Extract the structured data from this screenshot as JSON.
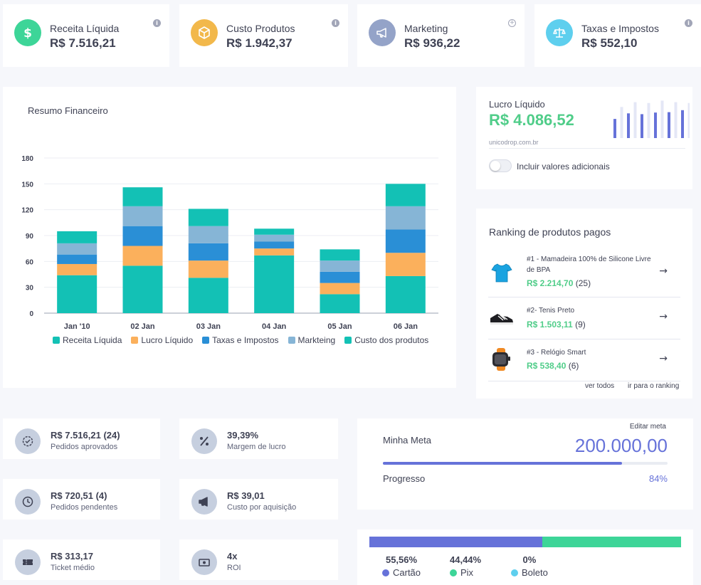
{
  "stats": [
    {
      "label": "Receita Líquida",
      "value": "R$ 7.516,21",
      "icon": "dollar-icon",
      "color": "#3dd598"
    },
    {
      "label": "Custo Produtos",
      "value": "R$ 1.942,37",
      "icon": "box-icon",
      "color": "#f2b84b"
    },
    {
      "label": "Marketing",
      "value": "R$ 936,22",
      "icon": "megaphone-icon",
      "color": "#94a3c8"
    },
    {
      "label": "Taxas e Impostos",
      "value": "R$ 552,10",
      "icon": "scale-icon",
      "color": "#5ecfee"
    }
  ],
  "chart": {
    "title": "Resumo Financeiro"
  },
  "chart_data": {
    "type": "bar",
    "stacked": true,
    "categories": [
      "Jan '10",
      "02 Jan",
      "03 Jan",
      "04 Jan",
      "05 Jan",
      "06 Jan"
    ],
    "ylim": [
      0,
      180
    ],
    "yticks": [
      0,
      30,
      60,
      90,
      120,
      150,
      180
    ],
    "grid": true,
    "legend_position": "bottom",
    "series": [
      {
        "name": "Receita Líquida",
        "color": "#13c1b5",
        "values": [
          44,
          55,
          41,
          67,
          22,
          43
        ]
      },
      {
        "name": "Lucro Líquido",
        "color": "#fbb05c",
        "values": [
          13,
          23,
          20,
          8,
          13,
          27
        ]
      },
      {
        "name": "Taxas e Impostos",
        "color": "#2a8fd6",
        "values": [
          11,
          23,
          20,
          8,
          13,
          27
        ]
      },
      {
        "name": "Markteing",
        "color": "#86b5d6",
        "values": [
          13,
          23,
          20,
          8,
          13,
          27
        ]
      },
      {
        "name": "Custo dos produtos",
        "color": "#13c1b5",
        "values": [
          14,
          22,
          20,
          7,
          13,
          26
        ]
      }
    ],
    "xlabel": "",
    "ylabel": ""
  },
  "lucro": {
    "label": "Lucro Líquido",
    "value": "R$ 4.086,52",
    "site": "unicodrop.com.br",
    "toggle_label": "Incluir valores adicionais",
    "toggle_on": false,
    "spark_values": [
      0.48,
      0.78,
      0.62,
      0.9,
      0.6,
      0.88,
      0.64,
      0.94,
      0.65,
      0.9,
      0.7,
      0.88
    ]
  },
  "ranking": {
    "title": "Ranking de produtos pagos",
    "items": [
      {
        "name": "#1 - Mamadeira 100% de Silicone Livre de BPA",
        "price": "R$ 2.214,70",
        "count": "(25)",
        "icon": "tshirt-icon"
      },
      {
        "name": "#2- Tenis Preto",
        "price": "R$ 1.503,11",
        "count": "(9)",
        "icon": "sneaker-icon"
      },
      {
        "name": "#3 - Relógio Smart",
        "price": "R$ 538,40",
        "count": "(6)",
        "icon": "smartwatch-icon"
      }
    ],
    "see_all": "ver todos",
    "go_ranking": "ir para o ranking"
  },
  "metrics": [
    {
      "value": "R$ 7.516,21 (24)",
      "label": "Pedidos aprovados",
      "icon": "check-circle-icon"
    },
    {
      "value": "39,39%",
      "label": "Margem de lucro",
      "icon": "percent-icon"
    },
    {
      "value": "R$ 720,51 (4)",
      "label": "Pedidos pendentes",
      "icon": "clock-icon"
    },
    {
      "value": "R$ 39,01",
      "label": "Custo por aquisição",
      "icon": "megaphone-icon"
    },
    {
      "value": "R$ 313,17",
      "label": "Ticket médio",
      "icon": "ticket-icon"
    },
    {
      "value": "4x",
      "label": "ROI",
      "icon": "cash-icon"
    }
  ],
  "meta": {
    "edit": "Editar meta",
    "label": "Minha Meta",
    "value": "200.000,00",
    "progress_label": "Progresso",
    "progress_value": "84%",
    "progress": 0.84
  },
  "payments": [
    {
      "pct": "55,56%",
      "name": "Cartão",
      "share": 0.5556,
      "color": "#6672d9"
    },
    {
      "pct": "44,44%",
      "name": "Pix",
      "share": 0.4444,
      "color": "#3dd598"
    },
    {
      "pct": "0%",
      "name": "Boleto",
      "share": 0,
      "color": "#5ecfee"
    }
  ]
}
